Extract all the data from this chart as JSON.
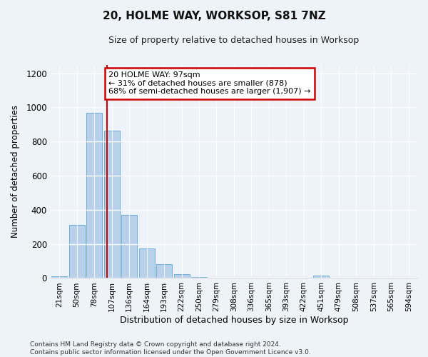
{
  "title": "20, HOLME WAY, WORKSOP, S81 7NZ",
  "subtitle": "Size of property relative to detached houses in Worksop",
  "xlabel": "Distribution of detached houses by size in Worksop",
  "ylabel": "Number of detached properties",
  "bar_labels": [
    "21sqm",
    "50sqm",
    "78sqm",
    "107sqm",
    "136sqm",
    "164sqm",
    "193sqm",
    "222sqm",
    "250sqm",
    "279sqm",
    "308sqm",
    "336sqm",
    "365sqm",
    "393sqm",
    "422sqm",
    "451sqm",
    "479sqm",
    "508sqm",
    "537sqm",
    "565sqm",
    "594sqm"
  ],
  "bar_values": [
    10,
    310,
    970,
    865,
    370,
    175,
    80,
    22,
    5,
    2,
    0,
    0,
    0,
    0,
    0,
    15,
    0,
    0,
    0,
    0,
    0
  ],
  "bar_color": "#b8d0ea",
  "bar_edgecolor": "#6aaed6",
  "annotation_text": "20 HOLME WAY: 97sqm\n← 31% of detached houses are smaller (878)\n68% of semi-detached houses are larger (1,907) →",
  "annotation_box_color": "#ffffff",
  "annotation_box_edgecolor": "#cc0000",
  "ylim": [
    0,
    1250
  ],
  "yticks": [
    0,
    200,
    400,
    600,
    800,
    1000,
    1200
  ],
  "background_color": "#eef2f9",
  "footer": "Contains HM Land Registry data © Crown copyright and database right 2024.\nContains public sector information licensed under the Open Government Licence v3.0.",
  "vline_color": "#cc0000",
  "vline_x": 2.72
}
